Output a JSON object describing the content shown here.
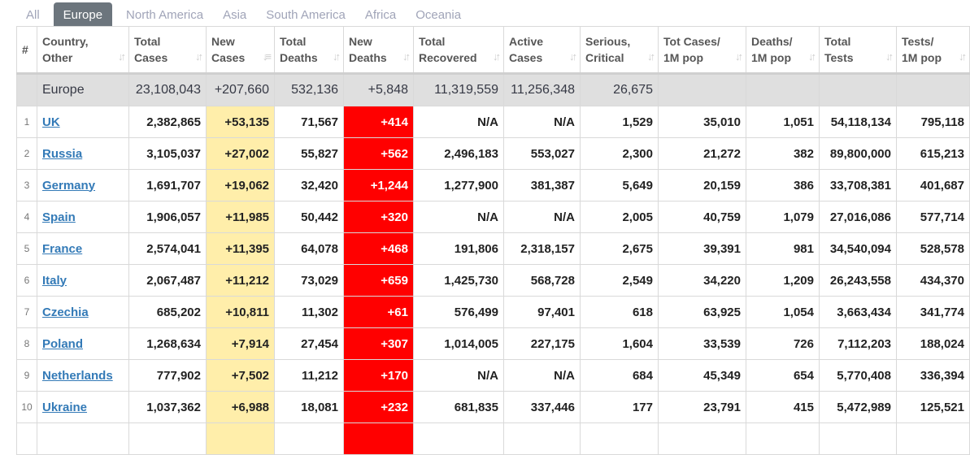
{
  "tabs": [
    "All",
    "Europe",
    "North America",
    "Asia",
    "South America",
    "Africa",
    "Oceania"
  ],
  "active_tab": "Europe",
  "headers": [
    "#",
    "Country,\nOther",
    "Total\nCases",
    "New\nCases",
    "Total\nDeaths",
    "New\nDeaths",
    "Total\nRecovered",
    "Active\nCases",
    "Serious,\nCritical",
    "Tot Cases/\n1M pop",
    "Deaths/\n1M pop",
    "Total\nTests",
    "Tests/\n1M pop"
  ],
  "total_row": [
    "",
    "Europe",
    "23,108,043",
    "+207,660",
    "532,136",
    "+5,848",
    "11,319,559",
    "11,256,348",
    "26,675",
    "",
    "",
    "",
    ""
  ],
  "rows": [
    [
      "1",
      "UK",
      "2,382,865",
      "+53,135",
      "71,567",
      "+414",
      "N/A",
      "N/A",
      "1,529",
      "35,010",
      "1,051",
      "54,118,134",
      "795,118"
    ],
    [
      "2",
      "Russia",
      "3,105,037",
      "+27,002",
      "55,827",
      "+562",
      "2,496,183",
      "553,027",
      "2,300",
      "21,272",
      "382",
      "89,800,000",
      "615,213"
    ],
    [
      "3",
      "Germany",
      "1,691,707",
      "+19,062",
      "32,420",
      "+1,244",
      "1,277,900",
      "381,387",
      "5,649",
      "20,159",
      "386",
      "33,708,381",
      "401,687"
    ],
    [
      "4",
      "Spain",
      "1,906,057",
      "+11,985",
      "50,442",
      "+320",
      "N/A",
      "N/A",
      "2,005",
      "40,759",
      "1,079",
      "27,016,086",
      "577,714"
    ],
    [
      "5",
      "France",
      "2,574,041",
      "+11,395",
      "64,078",
      "+468",
      "191,806",
      "2,318,157",
      "2,675",
      "39,391",
      "981",
      "34,540,094",
      "528,578"
    ],
    [
      "6",
      "Italy",
      "2,067,487",
      "+11,212",
      "73,029",
      "+659",
      "1,425,730",
      "568,728",
      "2,549",
      "34,220",
      "1,209",
      "26,243,558",
      "434,370"
    ],
    [
      "7",
      "Czechia",
      "685,202",
      "+10,811",
      "11,302",
      "+61",
      "576,499",
      "97,401",
      "618",
      "63,925",
      "1,054",
      "3,663,434",
      "341,774"
    ],
    [
      "8",
      "Poland",
      "1,268,634",
      "+7,914",
      "27,454",
      "+307",
      "1,014,005",
      "227,175",
      "1,604",
      "33,539",
      "726",
      "7,112,203",
      "188,024"
    ],
    [
      "9",
      "Netherlands",
      "777,902",
      "+7,502",
      "11,212",
      "+170",
      "N/A",
      "N/A",
      "684",
      "45,349",
      "654",
      "5,770,408",
      "336,394"
    ],
    [
      "10",
      "Ukraine",
      "1,037,362",
      "+6,988",
      "18,081",
      "+232",
      "681,835",
      "337,446",
      "177",
      "23,791",
      "415",
      "5,472,989",
      "125,521"
    ]
  ]
}
